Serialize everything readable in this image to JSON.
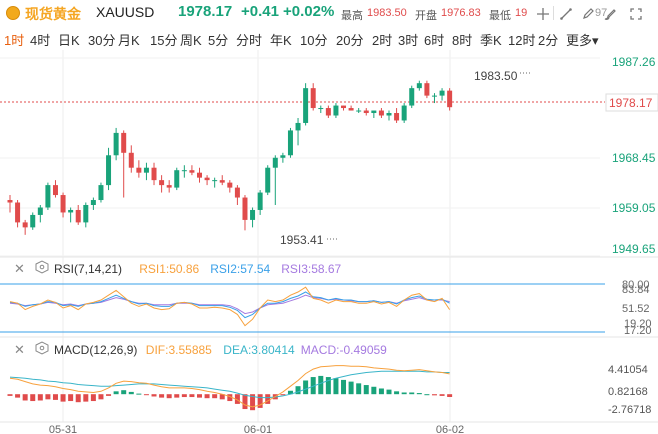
{
  "header": {
    "name": "现货黄金",
    "symbol": "XAUUSD",
    "price": "1978.17",
    "change": "+0.41",
    "change_pct": "+0.02%",
    "high_label": "最高",
    "high_value": "1983.50",
    "open_label": "开盘",
    "open_value": "1976.83",
    "low_label": "最低",
    "low_value": "19",
    "prev_value": "97",
    "icons": [
      "crosshair-icon",
      "line-draw-icon",
      "pen-icon",
      "brush-icon",
      "fullscreen-icon"
    ]
  },
  "tabs": [
    "1时",
    "4时",
    "日K",
    "30分",
    "月K",
    "15分",
    "周K",
    "5分",
    "分时",
    "年K",
    "10分",
    "20分",
    "2时",
    "3时",
    "6时",
    "8时",
    "季K",
    "12时",
    "2分",
    "更多"
  ],
  "active_tab": 0,
  "main_chart": {
    "price_ticks": [
      "1987.26",
      "1978.17",
      "1968.45",
      "1959.05",
      "1949.65"
    ],
    "current_price": "1978.17",
    "max_label": "1983.50",
    "min_label": "1953.41"
  },
  "rsi_panel": {
    "title": "RSI(7,14,21)",
    "rsi1": "RSI1:50.86",
    "rsi2": "RSI2:57.54",
    "rsi3": "RSI3:58.67",
    "ticks": [
      "80.00",
      "83.84",
      "51.52",
      "19.20",
      "17.20"
    ]
  },
  "macd_panel": {
    "title": "MACD(12,26,9)",
    "dif": "DIF:3.55885",
    "dea": "DEA:3.80414",
    "macd": "MACD:-0.49059",
    "ticks": [
      "4.41054",
      "0.82168",
      "-2.76718"
    ]
  },
  "x_labels": [
    "05-31",
    "06-01",
    "06-02"
  ],
  "colors": {
    "up": "#19a37a",
    "down": "#e04b4b",
    "accent": "#e8600f",
    "gold": "#f5a623",
    "rsi1": "#f7a13d",
    "rsi2": "#3aa0e8",
    "rsi3": "#a57ae0",
    "dif": "#f7a13d",
    "dea": "#3ab5c9"
  }
}
